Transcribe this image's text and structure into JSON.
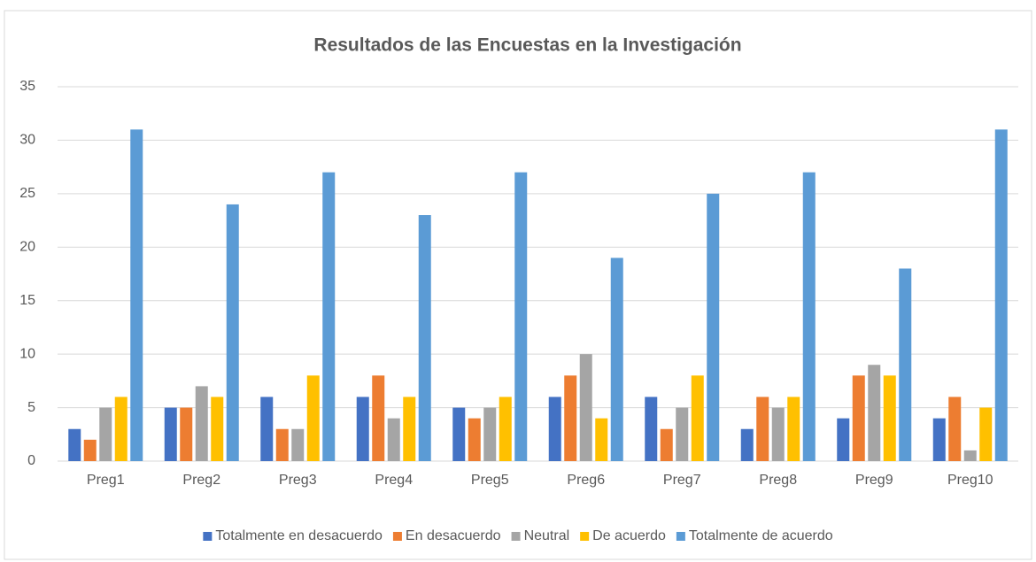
{
  "chart_data": {
    "type": "bar",
    "title": "Resultados de las Encuestas en la Investigación",
    "categories": [
      "Preg1",
      "Preg2",
      "Preg3",
      "Preg4",
      "Preg5",
      "Preg6",
      "Preg7",
      "Preg8",
      "Preg9",
      "Preg10"
    ],
    "series": [
      {
        "name": "Totalmente en desacuerdo",
        "color": "#4472c4",
        "values": [
          3,
          5,
          6,
          6,
          5,
          6,
          6,
          3,
          4,
          4
        ]
      },
      {
        "name": "En desacuerdo",
        "color": "#ed7d31",
        "values": [
          2,
          5,
          3,
          8,
          4,
          8,
          3,
          6,
          8,
          6
        ]
      },
      {
        "name": "Neutral",
        "color": "#a5a5a5",
        "values": [
          5,
          7,
          3,
          4,
          5,
          10,
          5,
          5,
          9,
          1
        ]
      },
      {
        "name": "De acuerdo",
        "color": "#ffc000",
        "values": [
          6,
          6,
          8,
          6,
          6,
          4,
          8,
          6,
          8,
          5
        ]
      },
      {
        "name": "Totalmente de acuerdo",
        "color": "#5b9bd5",
        "values": [
          31,
          24,
          27,
          23,
          27,
          19,
          25,
          27,
          18,
          31
        ]
      }
    ],
    "ylim": [
      0,
      35
    ],
    "yticks": [
      0,
      5,
      10,
      15,
      20,
      25,
      30,
      35
    ],
    "grid": true,
    "legend": "bottom"
  }
}
